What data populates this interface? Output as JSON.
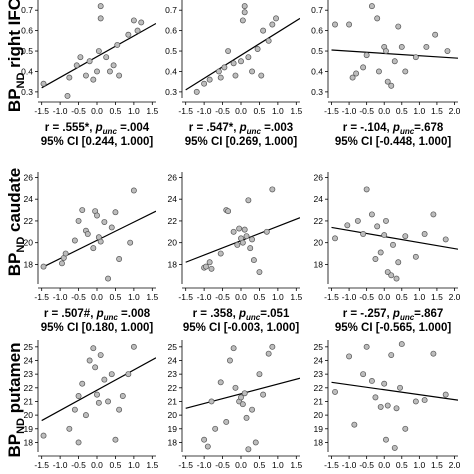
{
  "rows": [
    {
      "label_main": "BP",
      "label_sub": "ND",
      "label_rest": " right IFC"
    },
    {
      "label_main": "BP",
      "label_sub": "ND",
      "label_rest": " caudate"
    },
    {
      "label_main": "BP",
      "label_sub": "ND",
      "label_rest": " putamen"
    }
  ],
  "chart_data": [
    {
      "type": "scatter",
      "row": 0,
      "col": 0,
      "xlim": [
        -1.6,
        1.6
      ],
      "ylim": [
        0.27,
        0.75
      ],
      "xticks": [
        "-1.5",
        "-1.0",
        "-0.5",
        "0.0",
        "0.5",
        "1.0",
        "1.5"
      ],
      "yticks": [
        "0.3",
        "0.4",
        "0.5",
        "0.6",
        "0.7"
      ],
      "points": [
        [
          -1.45,
          0.34
        ],
        [
          -0.75,
          0.37
        ],
        [
          -0.55,
          0.43
        ],
        [
          -0.45,
          0.47
        ],
        [
          -0.3,
          0.38
        ],
        [
          -0.2,
          0.45
        ],
        [
          -0.1,
          0.36
        ],
        [
          0.0,
          0.4
        ],
        [
          0.05,
          0.5
        ],
        [
          0.1,
          0.66
        ],
        [
          0.1,
          0.72
        ],
        [
          0.25,
          0.47
        ],
        [
          0.35,
          0.4
        ],
        [
          0.45,
          0.43
        ],
        [
          0.55,
          0.53
        ],
        [
          0.6,
          0.38
        ],
        [
          0.85,
          0.58
        ],
        [
          1.0,
          0.65
        ],
        [
          1.1,
          0.6
        ],
        [
          1.2,
          0.64
        ],
        [
          -0.8,
          0.28
        ]
      ],
      "fit": [
        [
          -1.5,
          0.32
        ],
        [
          1.6,
          0.635
        ]
      ],
      "stat_line1": {
        "pre": "r = .555*, ",
        "p": "p",
        "sub": "unc",
        "post": " =.004"
      },
      "stat_line2": "95% CI [0.244, 1.000]"
    },
    {
      "type": "scatter",
      "row": 0,
      "col": 1,
      "xlim": [
        -1.6,
        1.6
      ],
      "ylim": [
        0.27,
        0.75
      ],
      "xticks": [
        "-1.5",
        "-1.0",
        "-0.5",
        "0.0",
        "0.5",
        "1.0",
        "1.5"
      ],
      "yticks": [
        "0.3",
        "0.4",
        "0.5",
        "0.6",
        "0.7"
      ],
      "points": [
        [
          -1.0,
          0.34
        ],
        [
          -0.85,
          0.36
        ],
        [
          -0.6,
          0.4
        ],
        [
          -0.55,
          0.37
        ],
        [
          -0.45,
          0.42
        ],
        [
          -0.35,
          0.5
        ],
        [
          -0.2,
          0.44
        ],
        [
          -0.15,
          0.38
        ],
        [
          0.0,
          0.45
        ],
        [
          0.05,
          0.65
        ],
        [
          0.1,
          0.72
        ],
        [
          0.1,
          0.69
        ],
        [
          0.2,
          0.47
        ],
        [
          0.3,
          0.4
        ],
        [
          0.45,
          0.51
        ],
        [
          0.55,
          0.38
        ],
        [
          0.6,
          0.6
        ],
        [
          0.75,
          0.55
        ],
        [
          0.85,
          0.63
        ],
        [
          0.95,
          0.66
        ],
        [
          -1.2,
          0.3
        ]
      ],
      "fit": [
        [
          -1.5,
          0.31
        ],
        [
          1.6,
          0.66
        ]
      ],
      "stat_line1": {
        "pre": "r = .547*, ",
        "p": "p",
        "sub": "unc",
        "post": " =.003"
      },
      "stat_line2": "95% CI [0.269, 1.000]"
    },
    {
      "type": "scatter",
      "row": 0,
      "col": 2,
      "xlim": [
        -1.6,
        2.1
      ],
      "ylim": [
        0.27,
        0.75
      ],
      "xticks": [
        "-1.5",
        "-1.0",
        "-0.5",
        "0.0",
        "0.5",
        "1.0",
        "1.5",
        "2.0"
      ],
      "yticks": [
        "0.3",
        "0.4",
        "0.5",
        "0.6",
        "0.7"
      ],
      "points": [
        [
          -1.4,
          0.63
        ],
        [
          -1.0,
          0.63
        ],
        [
          -0.9,
          0.37
        ],
        [
          -0.8,
          0.39
        ],
        [
          -0.6,
          0.42
        ],
        [
          -0.5,
          0.48
        ],
        [
          -0.35,
          0.72
        ],
        [
          -0.2,
          0.66
        ],
        [
          -0.15,
          0.4
        ],
        [
          0.0,
          0.52
        ],
        [
          0.05,
          0.5
        ],
        [
          0.1,
          0.35
        ],
        [
          0.2,
          0.33
        ],
        [
          0.3,
          0.45
        ],
        [
          0.4,
          0.62
        ],
        [
          0.5,
          0.52
        ],
        [
          0.6,
          0.4
        ],
        [
          0.9,
          0.47
        ],
        [
          1.2,
          0.52
        ],
        [
          1.45,
          0.58
        ],
        [
          1.8,
          0.5
        ]
      ],
      "fit": [
        [
          -1.5,
          0.505
        ],
        [
          2.1,
          0.465
        ]
      ],
      "stat_line1": {
        "pre": "r = -.104, ",
        "p": "p",
        "sub": "unc",
        "post": "=.678"
      },
      "stat_line2": "95% CI [-0.448, 1.000]"
    },
    {
      "type": "scatter",
      "row": 1,
      "col": 0,
      "xlim": [
        -1.6,
        1.6
      ],
      "ylim": [
        16.2,
        26.5
      ],
      "xticks": [
        "-1.5",
        "-1.0",
        "-0.5",
        "0.0",
        "0.5",
        "1.0",
        "1.5"
      ],
      "yticks": [
        "18",
        "20",
        "22",
        "24",
        "26"
      ],
      "points": [
        [
          -1.45,
          17.8
        ],
        [
          -0.95,
          18.1
        ],
        [
          -0.9,
          18.6
        ],
        [
          -0.85,
          19.0
        ],
        [
          -0.6,
          20.2
        ],
        [
          -0.5,
          22.0
        ],
        [
          -0.4,
          23.0
        ],
        [
          -0.3,
          21.1
        ],
        [
          -0.25,
          20.8
        ],
        [
          -0.1,
          19.5
        ],
        [
          -0.05,
          22.9
        ],
        [
          0.0,
          22.5
        ],
        [
          0.05,
          20.5
        ],
        [
          0.1,
          20.1
        ],
        [
          0.2,
          21.9
        ],
        [
          0.3,
          16.7
        ],
        [
          0.4,
          21.4
        ],
        [
          0.5,
          22.8
        ],
        [
          0.6,
          18.5
        ],
        [
          0.9,
          20.0
        ],
        [
          1.0,
          24.8
        ]
      ],
      "fit": [
        [
          -1.5,
          17.7
        ],
        [
          1.6,
          22.9
        ]
      ],
      "stat_line1": {
        "pre": "r = .507#, ",
        "p": "p",
        "sub": "unc",
        "post": " =.008"
      },
      "stat_line2": "95% CI [0.180, 1.000]"
    },
    {
      "type": "scatter",
      "row": 1,
      "col": 1,
      "xlim": [
        -1.6,
        1.6
      ],
      "ylim": [
        16.2,
        26.5
      ],
      "xticks": [
        "-1.5",
        "-1.0",
        "-0.5",
        "0.0",
        "0.5",
        "1.0",
        "1.5"
      ],
      "yticks": [
        "18",
        "20",
        "22",
        "24",
        "26"
      ],
      "points": [
        [
          -1.0,
          17.7
        ],
        [
          -0.95,
          17.8
        ],
        [
          -0.85,
          18.2
        ],
        [
          -0.55,
          19.0
        ],
        [
          -0.4,
          23.0
        ],
        [
          -0.35,
          22.9
        ],
        [
          -0.2,
          21.0
        ],
        [
          -0.1,
          19.8
        ],
        [
          -0.05,
          21.3
        ],
        [
          0.0,
          20.4
        ],
        [
          0.05,
          20.0
        ],
        [
          0.1,
          21.2
        ],
        [
          0.15,
          20.6
        ],
        [
          0.2,
          23.9
        ],
        [
          0.25,
          19.5
        ],
        [
          0.3,
          20.3
        ],
        [
          0.35,
          18.4
        ],
        [
          0.5,
          17.3
        ],
        [
          0.7,
          21.0
        ],
        [
          0.85,
          24.9
        ],
        [
          -0.8,
          17.6
        ]
      ],
      "fit": [
        [
          -1.5,
          18.2
        ],
        [
          1.6,
          22.3
        ]
      ],
      "stat_line1": {
        "pre": "r = .358, ",
        "p": "p",
        "sub": "unc",
        "post": "=.051"
      },
      "stat_line2": "95% CI [-0.003, 1.000]"
    },
    {
      "type": "scatter",
      "row": 1,
      "col": 2,
      "xlim": [
        -1.6,
        2.1
      ],
      "ylim": [
        16.2,
        26.5
      ],
      "xticks": [
        "-1.5",
        "-1.0",
        "-0.5",
        "0.0",
        "0.5",
        "1.0",
        "1.5",
        "2.0"
      ],
      "yticks": [
        "18",
        "20",
        "22",
        "24",
        "26"
      ],
      "points": [
        [
          -1.4,
          20.4
        ],
        [
          -1.05,
          21.6
        ],
        [
          -0.75,
          22.0
        ],
        [
          -0.6,
          20.8
        ],
        [
          -0.5,
          24.9
        ],
        [
          -0.35,
          22.6
        ],
        [
          -0.25,
          18.5
        ],
        [
          -0.1,
          19.1
        ],
        [
          0.0,
          20.7
        ],
        [
          0.05,
          22.0
        ],
        [
          0.1,
          17.3
        ],
        [
          0.2,
          17.0
        ],
        [
          0.25,
          19.8
        ],
        [
          0.35,
          16.7
        ],
        [
          0.4,
          18.2
        ],
        [
          0.6,
          20.6
        ],
        [
          0.9,
          18.7
        ],
        [
          1.15,
          20.8
        ],
        [
          1.4,
          22.6
        ],
        [
          1.75,
          20.3
        ],
        [
          -0.2,
          21.5
        ]
      ],
      "fit": [
        [
          -1.5,
          21.4
        ],
        [
          2.1,
          19.4
        ]
      ],
      "stat_line1": {
        "pre": "r = -.257, ",
        "p": "p",
        "sub": "unc",
        "post": "=.867"
      },
      "stat_line2": "95% CI [-0.565, 1.000]"
    },
    {
      "type": "scatter",
      "row": 2,
      "col": 0,
      "xlim": [
        -1.6,
        1.6
      ],
      "ylim": [
        17.3,
        25.5
      ],
      "xticks": [
        "-1.5",
        "-1.0",
        "-0.5",
        "0.0",
        "0.5",
        "1.0",
        "1.5"
      ],
      "yticks": [
        "18",
        "19",
        "20",
        "21",
        "22",
        "23",
        "24",
        "25"
      ],
      "points": [
        [
          -1.45,
          18.5
        ],
        [
          -0.75,
          19.0
        ],
        [
          -0.6,
          20.4
        ],
        [
          -0.5,
          21.4
        ],
        [
          -0.4,
          22.3
        ],
        [
          -0.3,
          20.0
        ],
        [
          -0.2,
          24.0
        ],
        [
          -0.1,
          24.9
        ],
        [
          -0.05,
          23.5
        ],
        [
          0.0,
          21.5
        ],
        [
          0.05,
          20.9
        ],
        [
          0.1,
          24.4
        ],
        [
          0.2,
          22.6
        ],
        [
          0.3,
          21.0
        ],
        [
          0.4,
          23.0
        ],
        [
          0.5,
          18.2
        ],
        [
          0.6,
          20.4
        ],
        [
          0.7,
          21.4
        ],
        [
          0.85,
          23.0
        ],
        [
          1.0,
          25.0
        ],
        [
          -0.5,
          18.0
        ]
      ],
      "fit": [
        [
          -1.5,
          19.6
        ],
        [
          1.6,
          24.2
        ]
      ],
      "stat_line1": {
        "pre": "",
        "p": "",
        "sub": "",
        "post": ""
      },
      "stat_line2": ""
    },
    {
      "type": "scatter",
      "row": 2,
      "col": 1,
      "xlim": [
        -1.6,
        1.6
      ],
      "ylim": [
        17.3,
        25.5
      ],
      "xticks": [
        "-1.5",
        "-1.0",
        "-0.5",
        "0.0",
        "0.5",
        "1.0",
        "1.5"
      ],
      "yticks": [
        "18",
        "19",
        "20",
        "21",
        "22",
        "23",
        "24",
        "25"
      ],
      "points": [
        [
          -1.0,
          18.2
        ],
        [
          -0.9,
          17.7
        ],
        [
          -0.8,
          21.0
        ],
        [
          -0.55,
          22.4
        ],
        [
          -0.4,
          19.5
        ],
        [
          -0.3,
          24.0
        ],
        [
          -0.2,
          24.9
        ],
        [
          -0.15,
          22.0
        ],
        [
          -0.05,
          21.0
        ],
        [
          0.0,
          21.3
        ],
        [
          0.05,
          20.8
        ],
        [
          0.1,
          21.6
        ],
        [
          0.15,
          19.8
        ],
        [
          0.2,
          17.5
        ],
        [
          0.3,
          20.4
        ],
        [
          0.4,
          18.0
        ],
        [
          0.5,
          23.0
        ],
        [
          0.6,
          21.5
        ],
        [
          0.75,
          24.5
        ],
        [
          0.85,
          25.0
        ],
        [
          -0.7,
          19.0
        ]
      ],
      "fit": [
        [
          -1.5,
          20.5
        ],
        [
          1.6,
          22.7
        ]
      ],
      "stat_line1": {
        "pre": "",
        "p": "",
        "sub": "",
        "post": ""
      },
      "stat_line2": ""
    },
    {
      "type": "scatter",
      "row": 2,
      "col": 2,
      "xlim": [
        -1.6,
        2.1
      ],
      "ylim": [
        17.3,
        25.5
      ],
      "xticks": [
        "-1.5",
        "-1.0",
        "-0.5",
        "0.0",
        "0.5",
        "1.0",
        "1.5",
        "2.0"
      ],
      "yticks": [
        "18",
        "19",
        "20",
        "21",
        "22",
        "23",
        "24",
        "25"
      ],
      "points": [
        [
          -1.4,
          21.7
        ],
        [
          -1.0,
          24.3
        ],
        [
          -0.85,
          19.3
        ],
        [
          -0.6,
          23.0
        ],
        [
          -0.5,
          25.0
        ],
        [
          -0.35,
          22.5
        ],
        [
          -0.25,
          21.3
        ],
        [
          -0.1,
          20.6
        ],
        [
          0.0,
          22.3
        ],
        [
          0.05,
          18.2
        ],
        [
          0.1,
          20.7
        ],
        [
          0.2,
          24.4
        ],
        [
          0.3,
          17.6
        ],
        [
          0.35,
          20.5
        ],
        [
          0.45,
          22.0
        ],
        [
          0.6,
          19.0
        ],
        [
          0.9,
          21.0
        ],
        [
          1.15,
          21.1
        ],
        [
          1.4,
          24.5
        ],
        [
          1.75,
          21.5
        ],
        [
          0.5,
          25.2
        ]
      ],
      "fit": [
        [
          -1.5,
          22.4
        ],
        [
          2.1,
          21.1
        ]
      ],
      "stat_line1": {
        "pre": "",
        "p": "",
        "sub": "",
        "post": ""
      },
      "stat_line2": ""
    }
  ]
}
